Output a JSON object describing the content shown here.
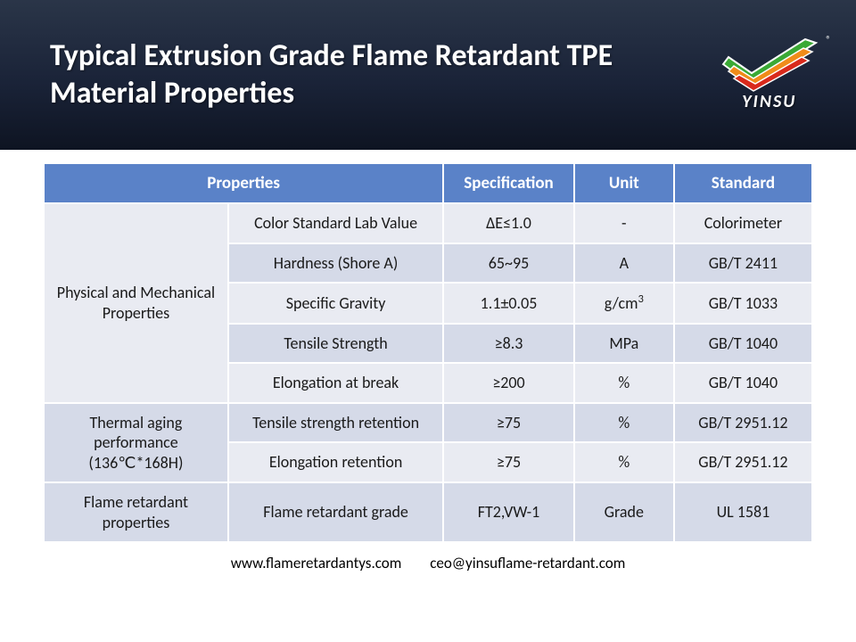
{
  "title": "Typical Extrusion Grade Flame Retardant TPE Material Properties",
  "logo_text": "YINSU",
  "watermark": "YINSU",
  "table": {
    "col_widths": [
      "24%",
      "28%",
      "17%",
      "13%",
      "18%"
    ],
    "headers": [
      "Properties",
      "",
      "Specification",
      "Unit",
      "Standard"
    ],
    "header_colspan_first": 2,
    "header_bg": "#5a82c8",
    "header_color": "#ffffff",
    "row_bg_a": "#e9ebf2",
    "row_bg_b": "#d5dae8",
    "border_color": "#ffffff",
    "groups": [
      {
        "label": "Physical and Mechanical Properties",
        "rows": [
          {
            "prop": "Color Standard Lab Value",
            "spec": "ΔE≤1.0",
            "unit": "-",
            "std": "Colorimeter"
          },
          {
            "prop": "Hardness (Shore A)",
            "spec": "65~95",
            "unit": "A",
            "std": "GB/T 2411"
          },
          {
            "prop": "Specific Gravity",
            "spec": "1.1±0.05",
            "unit": "g/cm³",
            "std": "GB/T 1033"
          },
          {
            "prop": "Tensile Strength",
            "spec": "≥8.3",
            "unit": "MPa",
            "std": "GB/T 1040"
          },
          {
            "prop": "Elongation at break",
            "spec": "≥200",
            "unit": "%",
            "std": "GB/T 1040"
          }
        ]
      },
      {
        "label": "Thermal aging performance (136℃*168H)",
        "rows": [
          {
            "prop": "Tensile strength retention",
            "spec": "≥75",
            "unit": "%",
            "std": "GB/T 2951.12"
          },
          {
            "prop": "Elongation retention",
            "spec": "≥75",
            "unit": "%",
            "std": "GB/T 2951.12"
          }
        ]
      },
      {
        "label": "Flame retardant properties",
        "rows": [
          {
            "prop": "Flame retardant grade",
            "spec": "FT2,VW-1",
            "unit": "Grade",
            "std": "UL 1581"
          }
        ]
      }
    ]
  },
  "footer": {
    "url": "www.flameretardantys.com",
    "email": "ceo@yinsuflame-retardant.com"
  },
  "colors": {
    "header_gradient_top": "#2a3548",
    "header_gradient_bottom": "#0e1422",
    "title_color": "#ffffff"
  },
  "logo_colors": {
    "green": "#3aa935",
    "orange": "#f08c1a",
    "red": "#d92a1c",
    "stroke": "#ffffff"
  }
}
